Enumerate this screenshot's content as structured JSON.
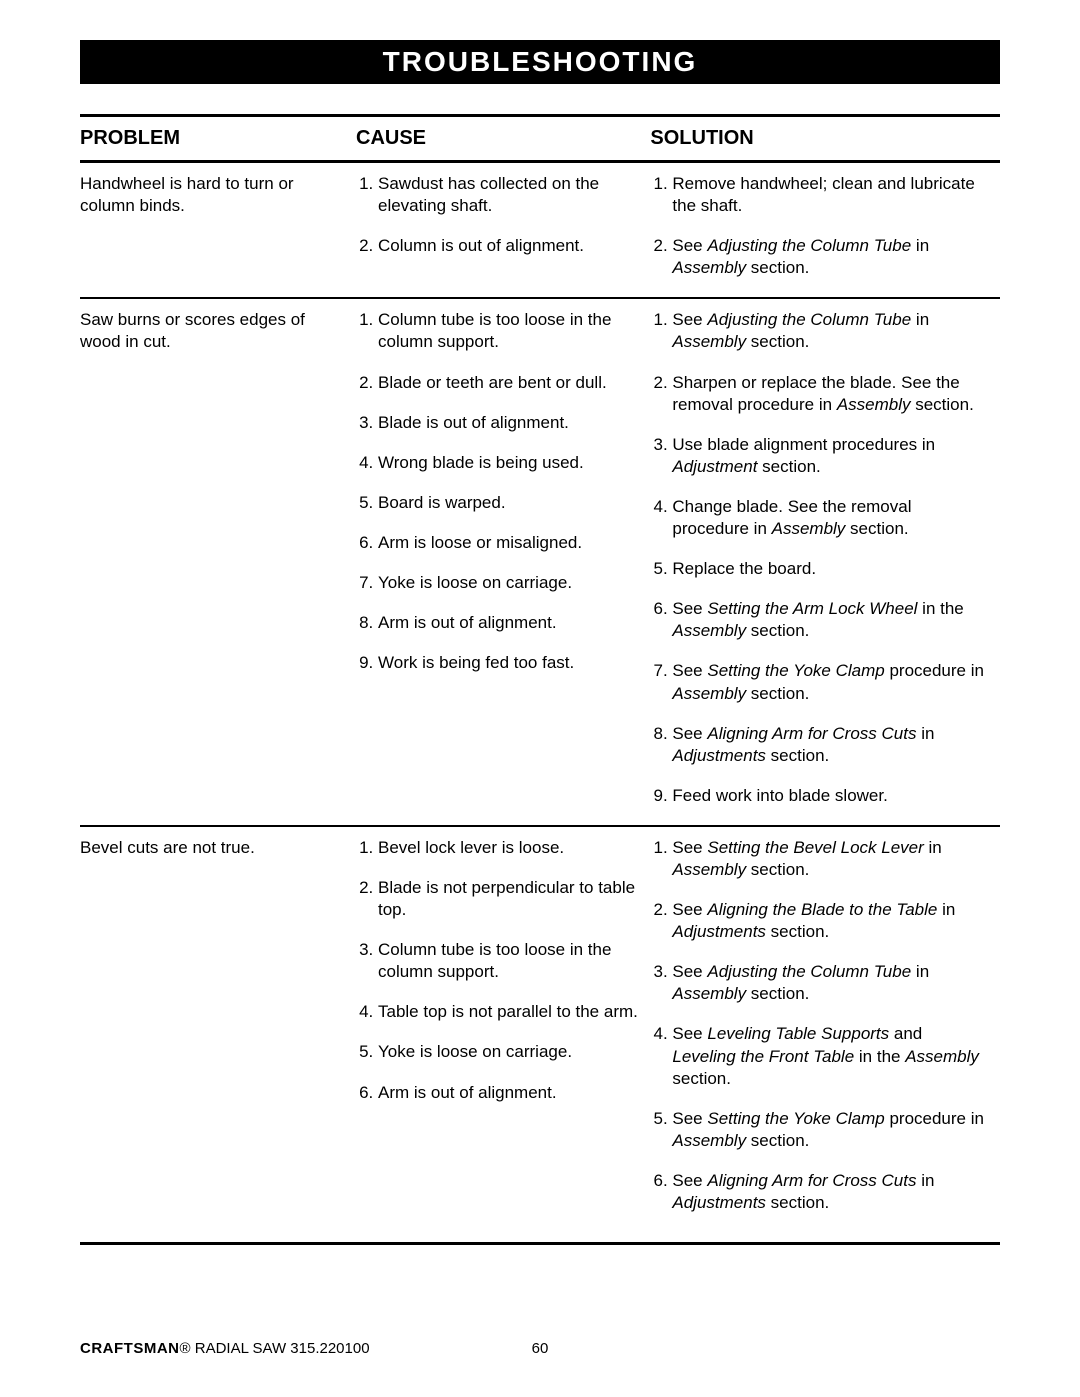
{
  "title": "TROUBLESHOOTING",
  "headers": {
    "problem": "PROBLEM",
    "cause": "CAUSE",
    "solution": "SOLUTION"
  },
  "rows": [
    {
      "problem": "Handwheel is hard to turn or column binds.",
      "causes": [
        "Sawdust has collected on the elevating shaft.",
        "Column is out of alignment."
      ],
      "solutions": [
        [
          {
            "t": "Remove handwheel; clean and lubricate the shaft."
          }
        ],
        [
          {
            "t": "See "
          },
          {
            "t": "Adjusting the Column Tube",
            "i": true
          },
          {
            "t": " in "
          },
          {
            "t": "Assembly",
            "i": true
          },
          {
            "t": " section."
          }
        ]
      ]
    },
    {
      "problem": "Saw burns or scores edges of wood in cut.",
      "causes": [
        "Column tube is too loose in the column support.",
        "Blade or teeth are bent or dull.",
        "Blade is out of alignment.",
        "Wrong blade is being used.",
        "Board is warped.",
        "Arm is loose or misaligned.",
        "Yoke is loose on carriage.",
        "Arm is out of alignment.",
        "Work is being fed too fast."
      ],
      "solutions": [
        [
          {
            "t": "See "
          },
          {
            "t": "Adjusting the Column Tube",
            "i": true
          },
          {
            "t": " in "
          },
          {
            "t": "Assembly",
            "i": true
          },
          {
            "t": " section."
          }
        ],
        [
          {
            "t": "Sharpen or replace the blade. See the removal procedure in "
          },
          {
            "t": "Assembly",
            "i": true
          },
          {
            "t": " section."
          }
        ],
        [
          {
            "t": "Use blade alignment procedures in "
          },
          {
            "t": "Adjustment",
            "i": true
          },
          {
            "t": " section."
          }
        ],
        [
          {
            "t": "Change blade. See the removal procedure in "
          },
          {
            "t": "Assembly",
            "i": true
          },
          {
            "t": " section."
          }
        ],
        [
          {
            "t": "Replace the board."
          }
        ],
        [
          {
            "t": "See "
          },
          {
            "t": "Setting the Arm Lock Wheel",
            "i": true
          },
          {
            "t": " in the "
          },
          {
            "t": "Assembly",
            "i": true
          },
          {
            "t": " section."
          }
        ],
        [
          {
            "t": "See "
          },
          {
            "t": "Setting the Yoke Clamp",
            "i": true
          },
          {
            "t": " procedure in "
          },
          {
            "t": "Assembly",
            "i": true
          },
          {
            "t": " section."
          }
        ],
        [
          {
            "t": "See "
          },
          {
            "t": "Aligning Arm for Cross Cuts",
            "i": true
          },
          {
            "t": " in "
          },
          {
            "t": "Adjustments",
            "i": true
          },
          {
            "t": " section."
          }
        ],
        [
          {
            "t": "Feed work into blade slower."
          }
        ]
      ]
    },
    {
      "problem": "Bevel cuts are not true.",
      "causes": [
        "Bevel lock lever is loose.",
        "Blade is not perpendicular to table top.",
        "Column tube is too loose in the column support.",
        "Table top is not parallel to the arm.",
        "Yoke is loose on carriage.",
        "Arm is out of alignment."
      ],
      "solutions": [
        [
          {
            "t": "See "
          },
          {
            "t": "Setting the Bevel Lock Lever",
            "i": true
          },
          {
            "t": " in "
          },
          {
            "t": "Assembly",
            "i": true
          },
          {
            "t": " section."
          }
        ],
        [
          {
            "t": "See "
          },
          {
            "t": "Aligning the Blade to the Table",
            "i": true
          },
          {
            "t": " in "
          },
          {
            "t": "Adjustments",
            "i": true
          },
          {
            "t": " section."
          }
        ],
        [
          {
            "t": "See "
          },
          {
            "t": "Adjusting the Column Tube",
            "i": true
          },
          {
            "t": " in "
          },
          {
            "t": "Assembly",
            "i": true
          },
          {
            "t": " section."
          }
        ],
        [
          {
            "t": "See "
          },
          {
            "t": "Leveling Table Supports",
            "i": true
          },
          {
            "t": " and "
          },
          {
            "t": "Leveling the Front Table",
            "i": true
          },
          {
            "t": " in the "
          },
          {
            "t": "Assembly",
            "i": true
          },
          {
            "t": " section."
          }
        ],
        [
          {
            "t": "See "
          },
          {
            "t": "Setting the Yoke Clamp",
            "i": true
          },
          {
            "t": " procedure in "
          },
          {
            "t": "Assembly",
            "i": true
          },
          {
            "t": " section."
          }
        ],
        [
          {
            "t": "See "
          },
          {
            "t": "Aligning Arm for Cross Cuts",
            "i": true
          },
          {
            "t": " in "
          },
          {
            "t": "Adjustments",
            "i": true
          },
          {
            "t": " section."
          }
        ]
      ]
    }
  ],
  "footer": {
    "brand": "CRAFTSMAN",
    "reg": "®",
    "product": " RADIAL SAW 315.220100",
    "page": "60"
  }
}
